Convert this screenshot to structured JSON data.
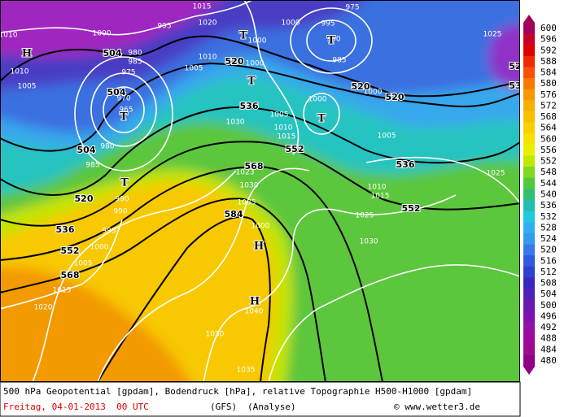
{
  "footer": {
    "line1": "500 hPa Geopotential [gpdam], Bodendruck [hPa], relative Topographie H500-H1000 [gpdam]",
    "date": "Freitag, 04-01-2013  00 UTC",
    "model": "(GFS)",
    "run": "(Analyse)",
    "credit": "© www.wetter3.de"
  },
  "colorbar": {
    "values": [
      600,
      596,
      592,
      588,
      584,
      580,
      576,
      572,
      568,
      564,
      560,
      556,
      552,
      548,
      544,
      540,
      536,
      532,
      528,
      524,
      520,
      516,
      512,
      508,
      504,
      500,
      496,
      492,
      488,
      484,
      480
    ],
    "colors": [
      "#a0005a",
      "#c80028",
      "#e00000",
      "#f02800",
      "#f85000",
      "#f87800",
      "#f89800",
      "#f8b000",
      "#f8c000",
      "#f8d000",
      "#f8e000",
      "#e8f000",
      "#c0e800",
      "#80d820",
      "#50c840",
      "#30c070",
      "#20c0b0",
      "#20c8e0",
      "#30b0f0",
      "#3898f0",
      "#3878e8",
      "#3058e0",
      "#3040d0",
      "#3828c0",
      "#5020b8",
      "#6818b0",
      "#8010b0",
      "#9010a8",
      "#a008a0",
      "#a00890",
      "#900080"
    ]
  },
  "map": {
    "geopotential_labels": [
      504,
      504,
      504,
      520,
      520,
      520,
      520,
      536,
      536,
      536,
      552,
      552,
      552,
      568,
      568,
      584,
      52,
      53
    ],
    "pressure_labels": [
      1000,
      995,
      1015,
      1020,
      1000,
      1010,
      1005,
      1000,
      1000,
      995,
      990,
      985,
      975,
      1000,
      1000,
      1025,
      1010,
      1005,
      980,
      985,
      975,
      970,
      965,
      980,
      985,
      990,
      990,
      995,
      1000,
      1005,
      1015,
      1020,
      1030,
      1005,
      1010,
      1015,
      1005,
      1025,
      1023,
      1030,
      1035,
      1010,
      1015,
      1025,
      1030,
      1040,
      1030,
      1035,
      1000,
      1010
    ],
    "centers": [
      "H",
      "T",
      "T",
      "T",
      "T",
      "T",
      "T",
      "H",
      "H"
    ]
  }
}
